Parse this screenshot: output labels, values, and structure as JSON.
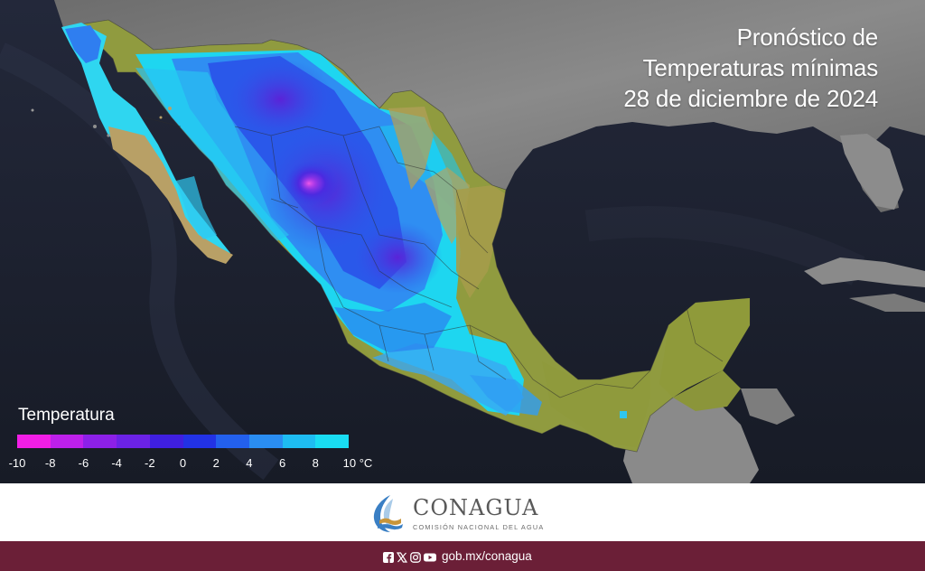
{
  "title": {
    "line1": "Pronóstico de",
    "line2": "Temperaturas mínimas",
    "line3": "28 de diciembre de 2024"
  },
  "legend": {
    "title": "Temperatura",
    "ticks": [
      "-10",
      "-8",
      "-6",
      "-4",
      "-2",
      "0",
      "2",
      "4",
      "6",
      "8",
      "10 °C"
    ],
    "colors": [
      "#f21ee6",
      "#bd20ea",
      "#8c20e8",
      "#6b22e6",
      "#3f1fe0",
      "#2232e6",
      "#2360ee",
      "#2a8df2",
      "#1ebcf2",
      "#19dcf2"
    ]
  },
  "brand": {
    "name": "CONAGUA",
    "subtitle": "COMISIÓN NACIONAL DEL AGUA"
  },
  "footer": {
    "url": "gob.mx/conagua",
    "social_icons": [
      "facebook-icon",
      "x-icon",
      "instagram-icon",
      "youtube-icon"
    ]
  },
  "colors": {
    "ocean": "#1b1f2b",
    "land_foreign": "#7a7a7a",
    "land_warm": "#8e9a3c",
    "footer": "#6b1f37"
  }
}
